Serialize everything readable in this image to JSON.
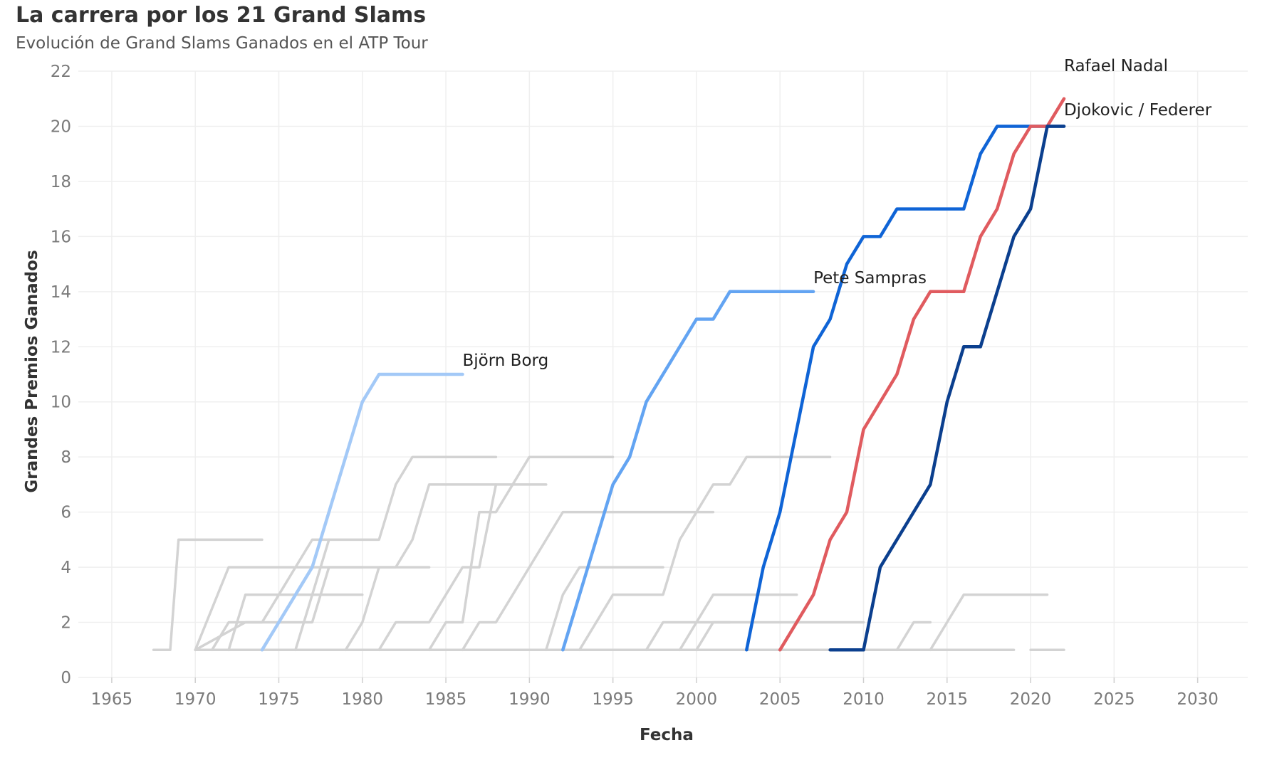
{
  "title": "La carrera por los 21 Grand Slams",
  "subtitle": "Evolución de Grand Slams Ganados en el ATP Tour",
  "chart_data": {
    "type": "line",
    "xlabel": "Fecha",
    "ylabel": "Grandes Premios Ganados",
    "xlim": [
      1963,
      2033
    ],
    "ylim": [
      0,
      22
    ],
    "x_ticks": [
      1965,
      1970,
      1975,
      1980,
      1985,
      1990,
      1995,
      2000,
      2005,
      2010,
      2015,
      2020,
      2025,
      2030
    ],
    "y_ticks": [
      0,
      2,
      4,
      6,
      8,
      10,
      12,
      14,
      16,
      18,
      20,
      22
    ],
    "grid": true,
    "annotations": [
      {
        "text": "Björn Borg",
        "series": "borg"
      },
      {
        "text": "Pete Sampras",
        "series": "sampras"
      },
      {
        "text": "Rafael Nadal",
        "series": "nadal"
      },
      {
        "text": "Djokovic / Federer",
        "series": "djokovic"
      }
    ],
    "series": [
      {
        "id": "g1",
        "color": "#d3d3d3",
        "points": [
          [
            1967.5,
            1
          ],
          [
            1968.5,
            1
          ],
          [
            1969,
            5
          ],
          [
            1974,
            5
          ]
        ]
      },
      {
        "id": "g2",
        "color": "#d3d3d3",
        "points": [
          [
            1970,
            1
          ],
          [
            1972,
            4
          ],
          [
            1983,
            4
          ],
          [
            1984,
            4
          ]
        ]
      },
      {
        "id": "g3",
        "color": "#d3d3d3",
        "points": [
          [
            1970,
            1
          ],
          [
            1973,
            2
          ],
          [
            1977,
            2
          ],
          [
            1978,
            4
          ],
          [
            1980,
            4
          ]
        ]
      },
      {
        "id": "g4",
        "color": "#d3d3d3",
        "points": [
          [
            1972,
            1
          ],
          [
            1973,
            3
          ],
          [
            1975,
            3
          ],
          [
            1976,
            4
          ],
          [
            1977,
            5
          ],
          [
            1978,
            5
          ]
        ]
      },
      {
        "id": "g5",
        "color": "#d3d3d3",
        "points": [
          [
            1971,
            1
          ],
          [
            1972,
            2
          ],
          [
            1974,
            2
          ],
          [
            1975,
            3
          ],
          [
            1980,
            3
          ]
        ]
      },
      {
        "id": "g6",
        "color": "#d3d3d3",
        "points": [
          [
            1976,
            1
          ],
          [
            1978,
            5
          ],
          [
            1981,
            5
          ],
          [
            1982,
            7
          ],
          [
            1983,
            8
          ],
          [
            1988,
            8
          ]
        ]
      },
      {
        "id": "g7",
        "color": "#d3d3d3",
        "points": [
          [
            1979,
            1
          ],
          [
            1980,
            2
          ],
          [
            1981,
            4
          ],
          [
            1982,
            4
          ],
          [
            1983,
            5
          ],
          [
            1984,
            7
          ],
          [
            1991,
            7
          ]
        ]
      },
      {
        "id": "g8",
        "color": "#d3d3d3",
        "points": [
          [
            1981,
            1
          ],
          [
            1982,
            2
          ],
          [
            1984,
            2
          ],
          [
            1986,
            4
          ],
          [
            1987,
            4
          ],
          [
            1988,
            7
          ]
        ]
      },
      {
        "id": "g9",
        "color": "#d3d3d3",
        "points": [
          [
            1984,
            1
          ],
          [
            1985,
            2
          ],
          [
            1986,
            2
          ],
          [
            1987,
            6
          ],
          [
            1988,
            6
          ],
          [
            1990,
            8
          ],
          [
            1995,
            8
          ]
        ]
      },
      {
        "id": "g10",
        "color": "#d3d3d3",
        "points": [
          [
            1986,
            1
          ],
          [
            1987,
            2
          ],
          [
            1988,
            2
          ],
          [
            1989,
            3
          ],
          [
            1990,
            4
          ],
          [
            1991,
            5
          ],
          [
            1992,
            6
          ],
          [
            2001,
            6
          ]
        ]
      },
      {
        "id": "g11",
        "color": "#d3d3d3",
        "points": [
          [
            1991,
            1
          ],
          [
            1992,
            3
          ],
          [
            1993,
            4
          ],
          [
            1998,
            4
          ]
        ]
      },
      {
        "id": "g12",
        "color": "#d3d3d3",
        "points": [
          [
            1993,
            1
          ],
          [
            1995,
            3
          ],
          [
            1998,
            3
          ],
          [
            1999,
            5
          ],
          [
            2001,
            7
          ],
          [
            2002,
            7
          ],
          [
            2003,
            8
          ],
          [
            2008,
            8
          ]
        ]
      },
      {
        "id": "g13",
        "color": "#d3d3d3",
        "points": [
          [
            1997,
            1
          ],
          [
            1998,
            2
          ],
          [
            2010,
            2
          ]
        ]
      },
      {
        "id": "g14",
        "color": "#d3d3d3",
        "points": [
          [
            1999,
            1
          ],
          [
            2000,
            2
          ],
          [
            2001,
            3
          ],
          [
            2006,
            3
          ]
        ]
      },
      {
        "id": "g15",
        "color": "#d3d3d3",
        "points": [
          [
            2000,
            1
          ],
          [
            2001,
            2
          ],
          [
            2002,
            2
          ]
        ]
      },
      {
        "id": "g16",
        "color": "#d3d3d3",
        "points": [
          [
            1970,
            1
          ],
          [
            2019,
            1
          ]
        ]
      },
      {
        "id": "g17",
        "color": "#d3d3d3",
        "points": [
          [
            2012,
            1
          ],
          [
            2013,
            2
          ],
          [
            2014,
            2
          ]
        ]
      },
      {
        "id": "g18",
        "color": "#d3d3d3",
        "points": [
          [
            2014,
            1
          ],
          [
            2015,
            2
          ],
          [
            2016,
            3
          ],
          [
            2021,
            3
          ]
        ]
      },
      {
        "id": "g19",
        "color": "#d3d3d3",
        "points": [
          [
            2020,
            1
          ],
          [
            2022,
            1
          ]
        ]
      },
      {
        "id": "borg",
        "color": "#a3c9f7",
        "points": [
          [
            1974,
            1
          ],
          [
            1976,
            3
          ],
          [
            1977,
            4
          ],
          [
            1980,
            10
          ],
          [
            1981,
            11
          ],
          [
            1986,
            11
          ]
        ]
      },
      {
        "id": "sampras",
        "color": "#63a4f2",
        "points": [
          [
            1992,
            1
          ],
          [
            1995,
            7
          ],
          [
            1996,
            8
          ],
          [
            1997,
            10
          ],
          [
            2000,
            13
          ],
          [
            2001,
            13
          ],
          [
            2002,
            14
          ],
          [
            2007,
            14
          ]
        ]
      },
      {
        "id": "federer",
        "color": "#0f64d6",
        "points": [
          [
            2003,
            1
          ],
          [
            2004,
            4
          ],
          [
            2005,
            6
          ],
          [
            2007,
            12
          ],
          [
            2008,
            13
          ],
          [
            2009,
            15
          ],
          [
            2010,
            16
          ],
          [
            2011,
            16
          ],
          [
            2012,
            17
          ],
          [
            2016,
            17
          ],
          [
            2017,
            19
          ],
          [
            2018,
            20
          ],
          [
            2022,
            20
          ]
        ]
      },
      {
        "id": "nadal",
        "color": "#e05b5f",
        "points": [
          [
            2005,
            1
          ],
          [
            2007,
            3
          ],
          [
            2008,
            5
          ],
          [
            2009,
            6
          ],
          [
            2010,
            9
          ],
          [
            2012,
            11
          ],
          [
            2013,
            13
          ],
          [
            2014,
            14
          ],
          [
            2016,
            14
          ],
          [
            2017,
            16
          ],
          [
            2018,
            17
          ],
          [
            2019,
            19
          ],
          [
            2020,
            20
          ],
          [
            2021,
            20
          ],
          [
            2022,
            21
          ]
        ]
      },
      {
        "id": "djokovic",
        "color": "#0b3f8e",
        "points": [
          [
            2008,
            1
          ],
          [
            2010,
            1
          ],
          [
            2011,
            4
          ],
          [
            2014,
            7
          ],
          [
            2015,
            10
          ],
          [
            2016,
            12
          ],
          [
            2017,
            12
          ],
          [
            2019,
            16
          ],
          [
            2020,
            17
          ],
          [
            2021,
            20
          ],
          [
            2022,
            20
          ]
        ]
      }
    ]
  }
}
